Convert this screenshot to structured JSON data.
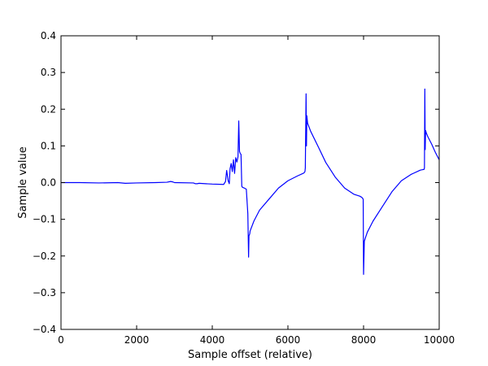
{
  "chart_data": {
    "type": "line",
    "title": "",
    "xlabel": "Sample offset (relative)",
    "ylabel": "Sample value",
    "xlim": [
      0,
      10000
    ],
    "ylim": [
      -0.4,
      0.4
    ],
    "x_ticks": [
      0,
      2000,
      4000,
      6000,
      8000,
      10000
    ],
    "x_tick_labels": [
      "0",
      "2000",
      "4000",
      "6000",
      "8000",
      "10000"
    ],
    "y_ticks": [
      -0.4,
      -0.3,
      -0.2,
      -0.1,
      0.0,
      0.1,
      0.2,
      0.3,
      0.4
    ],
    "y_tick_labels": [
      "−0.4",
      "−0.3",
      "−0.2",
      "−0.1",
      "0.0",
      "0.1",
      "0.2",
      "0.3",
      "0.4"
    ],
    "grid": false,
    "legend": false,
    "series": [
      {
        "color": "#0000ff",
        "x": [
          0,
          500,
          1000,
          1500,
          1700,
          2000,
          2500,
          2800,
          2900,
          2950,
          3000,
          3500,
          3550,
          3600,
          3650,
          4000,
          4300,
          4350,
          4380,
          4420,
          4450,
          4470,
          4500,
          4530,
          4560,
          4590,
          4620,
          4650,
          4680,
          4700,
          4720,
          4740,
          4760,
          4780,
          4800,
          4850,
          4900,
          4940,
          4960,
          4970,
          4990,
          5000,
          5100,
          5250,
          5500,
          5750,
          6000,
          6250,
          6400,
          6430,
          6450,
          6460,
          6480,
          6490,
          6500,
          6520,
          6600,
          6800,
          7000,
          7250,
          7500,
          7750,
          7900,
          7950,
          7970,
          7980,
          7990,
          8000,
          8020,
          8050,
          8100,
          8250,
          8500,
          8750,
          9000,
          9250,
          9500,
          9550,
          9600,
          9610,
          9620,
          9630,
          9640,
          9660,
          9700,
          9800,
          9900,
          10000
        ],
        "y": [
          0.0,
          0.0,
          -0.001,
          0.0,
          -0.002,
          -0.001,
          0.0,
          0.001,
          0.003,
          0.002,
          0.0,
          -0.001,
          -0.003,
          -0.003,
          -0.002,
          -0.004,
          -0.005,
          0.003,
          0.033,
          0.005,
          -0.003,
          0.038,
          0.052,
          0.03,
          0.062,
          0.025,
          0.068,
          0.056,
          0.07,
          0.168,
          0.085,
          0.079,
          0.077,
          -0.01,
          -0.013,
          -0.015,
          -0.018,
          -0.085,
          -0.203,
          -0.145,
          -0.14,
          -0.132,
          -0.105,
          -0.075,
          -0.045,
          -0.015,
          0.005,
          0.018,
          0.025,
          0.027,
          0.03,
          0.04,
          0.242,
          0.1,
          0.182,
          0.162,
          0.14,
          0.098,
          0.055,
          0.015,
          -0.015,
          -0.032,
          -0.037,
          -0.04,
          -0.042,
          -0.044,
          -0.045,
          -0.25,
          -0.16,
          -0.15,
          -0.135,
          -0.105,
          -0.065,
          -0.025,
          0.005,
          0.022,
          0.034,
          0.035,
          0.036,
          0.04,
          0.255,
          0.09,
          0.142,
          0.135,
          0.125,
          0.105,
          0.082,
          0.062
        ]
      }
    ]
  }
}
